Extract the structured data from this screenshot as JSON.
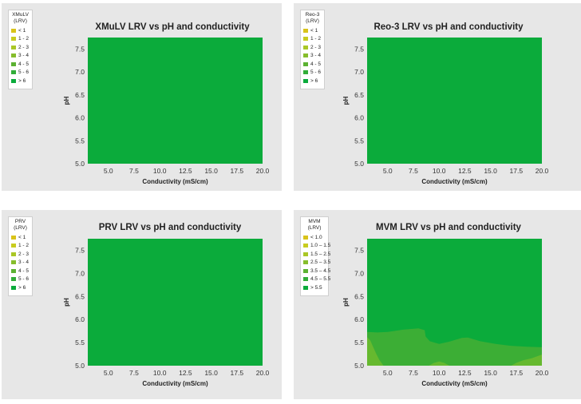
{
  "colors": {
    "panel_bg": "#e7e7e7",
    "fill_high": "#0bab3b",
    "fill_mid": "#3cae35",
    "fill_low": "#66b92f",
    "legend_palette": [
      "#d9c31a",
      "#c8cc1f",
      "#aac726",
      "#86bd2c",
      "#5cb232",
      "#32ad39",
      "#0bab3b"
    ]
  },
  "chart_data": [
    {
      "type": "heatmap",
      "title": "XMuLV LRV vs pH and conductivity",
      "xlabel": "Conductivity (mS/cm)",
      "ylabel": "pH",
      "xlim": [
        3.0,
        20.0
      ],
      "ylim": [
        5.0,
        7.75
      ],
      "xticks": [
        "5.0",
        "7.5",
        "10.0",
        "12.5",
        "15.0",
        "17.5",
        "20.0"
      ],
      "yticks": [
        "5.0",
        "5.5",
        "6.0",
        "6.5",
        "7.0",
        "7.5"
      ],
      "legend_title": [
        "XMuLV",
        "(LRV)"
      ],
      "legend": [
        "< 1",
        "1 - 2",
        "2 - 3",
        "3 - 4",
        "4 - 5",
        "5 - 6",
        "> 6"
      ],
      "regions": []
    },
    {
      "type": "heatmap",
      "title": "Reo-3 LRV vs pH and conductivity",
      "xlabel": "Conductivity (mS/cm)",
      "ylabel": "pH",
      "xlim": [
        3.0,
        20.0
      ],
      "ylim": [
        5.0,
        7.75
      ],
      "xticks": [
        "5.0",
        "7.5",
        "10.0",
        "12.5",
        "15.0",
        "17.5",
        "20.0"
      ],
      "yticks": [
        "5.0",
        "5.5",
        "6.0",
        "6.5",
        "7.0",
        "7.5"
      ],
      "legend_title": [
        "Reo-3",
        "(LRV)"
      ],
      "legend": [
        "< 1",
        "1 - 2",
        "2 - 3",
        "3 - 4",
        "4 - 5",
        "5 - 6",
        "> 6"
      ],
      "regions": []
    },
    {
      "type": "heatmap",
      "title": "PRV LRV vs pH and conductivity",
      "xlabel": "Conductivity (mS/cm)",
      "ylabel": "pH",
      "xlim": [
        3.0,
        20.0
      ],
      "ylim": [
        5.0,
        7.75
      ],
      "xticks": [
        "5.0",
        "7.5",
        "10.0",
        "12.5",
        "15.0",
        "17.5",
        "20.0"
      ],
      "yticks": [
        "5.0",
        "5.5",
        "6.0",
        "6.5",
        "7.0",
        "7.5"
      ],
      "legend_title": [
        "PRV",
        "(LRV)"
      ],
      "legend": [
        "< 1",
        "1 - 2",
        "2 - 3",
        "3 - 4",
        "4 - 5",
        "5 - 6",
        "> 6"
      ],
      "regions": []
    },
    {
      "type": "heatmap",
      "title": "MVM LRV vs pH and conductivity",
      "xlabel": "Conductivity (mS/cm)",
      "ylabel": "pH",
      "xlim": [
        3.0,
        20.0
      ],
      "ylim": [
        5.0,
        7.75
      ],
      "xticks": [
        "5.0",
        "7.5",
        "10.0",
        "12.5",
        "15.0",
        "17.5",
        "20.0"
      ],
      "yticks": [
        "5.0",
        "5.5",
        "6.0",
        "6.5",
        "7.0",
        "7.5"
      ],
      "legend_title": [
        "MVM",
        "(LRV)"
      ],
      "legend": [
        "< 1.0",
        "1.0 – 1.5",
        "1.5 – 2.5",
        "2.5 – 3.5",
        "3.5 – 4.5",
        "4.5 – 5.5",
        "> 5.5"
      ],
      "regions": [
        {
          "level": "4.5 – 5.5",
          "boundary": [
            [
              3.0,
              5.73
            ],
            [
              4.0,
              5.72
            ],
            [
              5.0,
              5.73
            ],
            [
              6.5,
              5.78
            ],
            [
              8.0,
              5.81
            ],
            [
              8.6,
              5.77
            ],
            [
              8.7,
              5.63
            ],
            [
              9.1,
              5.53
            ],
            [
              10.0,
              5.47
            ],
            [
              11.0,
              5.52
            ],
            [
              12.2,
              5.6
            ],
            [
              12.8,
              5.61
            ],
            [
              14.0,
              5.53
            ],
            [
              15.5,
              5.47
            ],
            [
              17.0,
              5.43
            ],
            [
              18.5,
              5.41
            ],
            [
              20.0,
              5.4
            ],
            [
              20.0,
              5.0
            ],
            [
              3.0,
              5.0
            ]
          ]
        },
        {
          "level": "3.5 – 4.5",
          "boundary": [
            [
              3.0,
              5.62
            ],
            [
              3.3,
              5.55
            ],
            [
              3.6,
              5.4
            ],
            [
              3.9,
              5.25
            ],
            [
              4.2,
              5.12
            ],
            [
              4.6,
              5.0
            ],
            [
              3.0,
              5.0
            ]
          ]
        },
        {
          "level": "3.5 – 4.5",
          "boundary": [
            [
              9.0,
              5.0
            ],
            [
              9.5,
              5.06
            ],
            [
              10.0,
              5.09
            ],
            [
              10.5,
              5.06
            ],
            [
              11.0,
              5.0
            ]
          ]
        },
        {
          "level": "3.5 – 4.5",
          "boundary": [
            [
              17.0,
              5.0
            ],
            [
              17.5,
              5.06
            ],
            [
              18.2,
              5.12
            ],
            [
              19.0,
              5.16
            ],
            [
              20.0,
              5.24
            ],
            [
              20.0,
              5.0
            ]
          ]
        }
      ]
    }
  ]
}
